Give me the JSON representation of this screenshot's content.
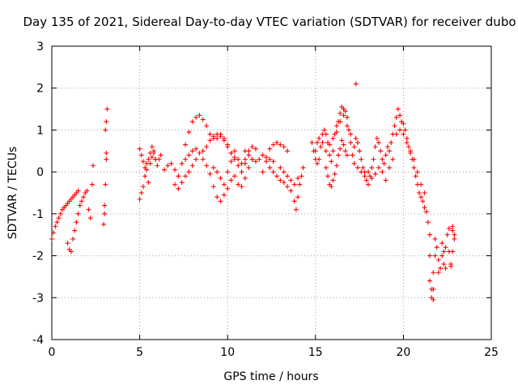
{
  "chart_data": {
    "type": "scatter",
    "title": "Day 135 of 2021, Sidereal Day-to-day VTEC variation (SDTVAR) for receiver dubo",
    "xlabel": "GPS time / hours",
    "ylabel": "SDTVAR / TECUs",
    "xlim": [
      0,
      25
    ],
    "ylim": [
      -4,
      3
    ],
    "xticks": [
      0,
      5,
      10,
      15,
      20,
      25
    ],
    "yticks": [
      -4,
      -3,
      -2,
      -1,
      0,
      1,
      2,
      3
    ],
    "xtick_labels": [
      "0",
      "5",
      "10",
      "15",
      "20",
      "25"
    ],
    "ytick_labels": [
      "-4",
      "-3",
      "-2",
      "-1",
      "0",
      "1",
      "2",
      "3"
    ],
    "grid": true,
    "marker": "+",
    "marker_color": "#ff0000",
    "series": [
      {
        "name": "SDTVAR",
        "points": [
          [
            0.0,
            -1.6
          ],
          [
            0.1,
            -1.45
          ],
          [
            0.2,
            -1.3
          ],
          [
            0.3,
            -1.2
          ],
          [
            0.4,
            -1.1
          ],
          [
            0.5,
            -1.0
          ],
          [
            0.6,
            -0.9
          ],
          [
            0.7,
            -0.85
          ],
          [
            0.8,
            -0.8
          ],
          [
            0.9,
            -0.75
          ],
          [
            1.0,
            -0.7
          ],
          [
            1.1,
            -0.65
          ],
          [
            1.2,
            -0.6
          ],
          [
            1.3,
            -0.55
          ],
          [
            1.4,
            -0.5
          ],
          [
            1.5,
            -0.45
          ],
          [
            0.9,
            -1.7
          ],
          [
            1.0,
            -1.85
          ],
          [
            1.1,
            -1.9
          ],
          [
            1.2,
            -1.6
          ],
          [
            1.3,
            -1.4
          ],
          [
            1.4,
            -1.2
          ],
          [
            1.5,
            -1.0
          ],
          [
            1.6,
            -0.8
          ],
          [
            1.7,
            -0.7
          ],
          [
            1.8,
            -0.6
          ],
          [
            1.9,
            -0.5
          ],
          [
            2.0,
            -0.45
          ],
          [
            2.1,
            -0.9
          ],
          [
            2.2,
            -1.1
          ],
          [
            2.3,
            -0.3
          ],
          [
            2.35,
            0.15
          ],
          [
            2.95,
            -1.25
          ],
          [
            3.0,
            -1.0
          ],
          [
            3.0,
            -0.8
          ],
          [
            3.05,
            -0.3
          ],
          [
            3.1,
            0.3
          ],
          [
            3.1,
            0.45
          ],
          [
            3.05,
            1.0
          ],
          [
            3.1,
            1.2
          ],
          [
            3.15,
            1.5
          ],
          [
            5.0,
            -0.65
          ],
          [
            5.1,
            -0.5
          ],
          [
            5.2,
            -0.35
          ],
          [
            5.3,
            -0.1
          ],
          [
            5.4,
            0.05
          ],
          [
            5.5,
            -0.25
          ],
          [
            5.6,
            0.2
          ],
          [
            5.7,
            0.35
          ],
          [
            5.8,
            0.45
          ],
          [
            5.9,
            0.3
          ],
          [
            5.0,
            0.55
          ],
          [
            5.1,
            0.4
          ],
          [
            5.2,
            0.25
          ],
          [
            5.3,
            0.1
          ],
          [
            5.4,
            0.2
          ],
          [
            5.5,
            0.3
          ],
          [
            5.6,
            0.45
          ],
          [
            5.7,
            0.6
          ],
          [
            5.8,
            0.5
          ],
          [
            5.9,
            0.3
          ],
          [
            6.0,
            0.15
          ],
          [
            6.1,
            0.3
          ],
          [
            6.2,
            0.4
          ],
          [
            6.4,
            0.05
          ],
          [
            6.6,
            0.15
          ],
          [
            6.8,
            0.2
          ],
          [
            7.0,
            0.05
          ],
          [
            7.2,
            -0.1
          ],
          [
            7.4,
            0.2
          ],
          [
            7.6,
            0.3
          ],
          [
            7.8,
            0.4
          ],
          [
            8.0,
            0.5
          ],
          [
            8.2,
            0.55
          ],
          [
            7.0,
            -0.3
          ],
          [
            7.2,
            -0.4
          ],
          [
            7.4,
            -0.25
          ],
          [
            7.6,
            -0.1
          ],
          [
            7.8,
            0.0
          ],
          [
            8.0,
            0.15
          ],
          [
            8.2,
            0.3
          ],
          [
            8.4,
            0.45
          ],
          [
            7.6,
            0.65
          ],
          [
            7.8,
            0.95
          ],
          [
            8.0,
            1.2
          ],
          [
            8.2,
            1.3
          ],
          [
            8.4,
            1.35
          ],
          [
            8.6,
            1.25
          ],
          [
            8.8,
            1.1
          ],
          [
            9.0,
            0.9
          ],
          [
            9.2,
            0.8
          ],
          [
            9.4,
            0.8
          ],
          [
            9.6,
            0.85
          ],
          [
            9.8,
            0.75
          ],
          [
            10.0,
            0.6
          ],
          [
            10.2,
            0.45
          ],
          [
            10.4,
            0.5
          ],
          [
            8.6,
            0.5
          ],
          [
            8.8,
            0.6
          ],
          [
            9.0,
            0.75
          ],
          [
            9.2,
            0.85
          ],
          [
            9.4,
            0.9
          ],
          [
            9.6,
            0.9
          ],
          [
            9.8,
            0.8
          ],
          [
            10.0,
            0.65
          ],
          [
            10.2,
            0.45
          ],
          [
            10.4,
            0.3
          ],
          [
            10.6,
            0.15
          ],
          [
            10.8,
            0.0
          ],
          [
            11.0,
            0.2
          ],
          [
            11.2,
            0.5
          ],
          [
            11.4,
            0.6
          ],
          [
            11.6,
            0.55
          ],
          [
            8.6,
            0.3
          ],
          [
            8.8,
            0.15
          ],
          [
            9.0,
            -0.05
          ],
          [
            9.2,
            -0.35
          ],
          [
            9.4,
            -0.6
          ],
          [
            9.6,
            -0.7
          ],
          [
            9.8,
            -0.55
          ],
          [
            10.0,
            -0.4
          ],
          [
            10.2,
            -0.2
          ],
          [
            10.4,
            -0.1
          ],
          [
            10.6,
            -0.3
          ],
          [
            10.8,
            -0.35
          ],
          [
            11.0,
            -0.15
          ],
          [
            11.2,
            0.1
          ],
          [
            11.4,
            0.3
          ],
          [
            9.2,
            0.1
          ],
          [
            9.4,
            0.0
          ],
          [
            9.6,
            -0.15
          ],
          [
            9.8,
            -0.3
          ],
          [
            10.0,
            0.0
          ],
          [
            10.2,
            0.25
          ],
          [
            10.4,
            0.35
          ],
          [
            10.6,
            0.3
          ],
          [
            10.8,
            0.2
          ],
          [
            11.0,
            0.3
          ],
          [
            11.0,
            0.5
          ],
          [
            11.2,
            0.4
          ],
          [
            11.4,
            0.3
          ],
          [
            11.6,
            0.25
          ],
          [
            11.8,
            0.3
          ],
          [
            12.0,
            0.4
          ],
          [
            12.2,
            0.35
          ],
          [
            12.4,
            0.3
          ],
          [
            12.6,
            0.25
          ],
          [
            12.0,
            0.0
          ],
          [
            12.2,
            0.25
          ],
          [
            12.4,
            0.55
          ],
          [
            12.6,
            0.65
          ],
          [
            12.8,
            0.7
          ],
          [
            13.0,
            0.65
          ],
          [
            13.2,
            0.6
          ],
          [
            13.4,
            0.5
          ],
          [
            12.4,
            0.1
          ],
          [
            12.6,
            0.0
          ],
          [
            12.8,
            -0.1
          ],
          [
            13.0,
            -0.2
          ],
          [
            13.2,
            -0.25
          ],
          [
            13.4,
            -0.35
          ],
          [
            13.6,
            -0.45
          ],
          [
            13.8,
            -0.7
          ],
          [
            13.9,
            -0.9
          ],
          [
            14.0,
            -0.6
          ],
          [
            14.1,
            -0.3
          ],
          [
            14.2,
            -0.1
          ],
          [
            14.3,
            0.1
          ],
          [
            13.0,
            0.1
          ],
          [
            13.2,
            0.0
          ],
          [
            13.4,
            -0.1
          ],
          [
            13.6,
            -0.2
          ],
          [
            13.8,
            -0.3
          ],
          [
            14.0,
            -0.15
          ],
          [
            14.8,
            0.7
          ],
          [
            14.9,
            0.5
          ],
          [
            15.0,
            0.3
          ],
          [
            15.1,
            0.2
          ],
          [
            15.2,
            0.3
          ],
          [
            15.3,
            0.6
          ],
          [
            15.4,
            0.9
          ],
          [
            15.5,
            1.0
          ],
          [
            15.6,
            0.9
          ],
          [
            15.7,
            0.7
          ],
          [
            15.8,
            0.4
          ],
          [
            15.9,
            0.25
          ],
          [
            16.0,
            0.5
          ],
          [
            16.1,
            0.9
          ],
          [
            16.2,
            1.1
          ],
          [
            16.3,
            1.2
          ],
          [
            16.4,
            1.4
          ],
          [
            16.5,
            1.55
          ],
          [
            16.6,
            1.5
          ],
          [
            16.7,
            1.45
          ],
          [
            16.8,
            1.3
          ],
          [
            16.9,
            1.0
          ],
          [
            17.0,
            0.7
          ],
          [
            15.0,
            0.5
          ],
          [
            15.1,
            0.7
          ],
          [
            15.2,
            0.8
          ],
          [
            15.4,
            0.7
          ],
          [
            15.6,
            0.5
          ],
          [
            15.8,
            0.65
          ],
          [
            16.0,
            0.8
          ],
          [
            16.2,
            0.95
          ],
          [
            16.4,
            1.2
          ],
          [
            16.6,
            1.35
          ],
          [
            16.8,
            1.1
          ],
          [
            17.0,
            0.9
          ],
          [
            15.6,
            0.1
          ],
          [
            15.7,
            -0.1
          ],
          [
            15.8,
            -0.3
          ],
          [
            15.9,
            -0.35
          ],
          [
            16.0,
            -0.2
          ],
          [
            16.1,
            -0.05
          ],
          [
            16.2,
            0.15
          ],
          [
            16.3,
            0.4
          ],
          [
            16.4,
            0.55
          ],
          [
            16.5,
            0.75
          ],
          [
            16.6,
            0.65
          ],
          [
            16.7,
            0.5
          ],
          [
            16.8,
            0.4
          ],
          [
            17.3,
            2.1
          ],
          [
            17.1,
            0.4
          ],
          [
            17.2,
            0.6
          ],
          [
            17.3,
            0.8
          ],
          [
            17.4,
            0.7
          ],
          [
            17.5,
            0.5
          ],
          [
            17.6,
            0.3
          ],
          [
            17.7,
            0.1
          ],
          [
            17.8,
            0.0
          ],
          [
            17.9,
            -0.2
          ],
          [
            18.0,
            -0.3
          ],
          [
            18.1,
            -0.1
          ],
          [
            18.2,
            0.1
          ],
          [
            18.3,
            0.3
          ],
          [
            18.4,
            0.6
          ],
          [
            18.5,
            0.8
          ],
          [
            18.6,
            0.7
          ],
          [
            18.7,
            0.5
          ],
          [
            18.8,
            0.3
          ],
          [
            17.2,
            0.2
          ],
          [
            17.4,
            0.1
          ],
          [
            17.6,
            0.0
          ],
          [
            17.8,
            -0.1
          ],
          [
            18.0,
            0.0
          ],
          [
            18.2,
            -0.15
          ],
          [
            18.4,
            -0.05
          ],
          [
            18.6,
            0.1
          ],
          [
            18.8,
            0.0
          ],
          [
            19.0,
            -0.2
          ],
          [
            19.2,
            0.1
          ],
          [
            19.4,
            0.3
          ],
          [
            18.9,
            0.2
          ],
          [
            19.0,
            0.4
          ],
          [
            19.1,
            0.6
          ],
          [
            19.2,
            0.5
          ],
          [
            19.3,
            0.7
          ],
          [
            19.4,
            0.9
          ],
          [
            19.5,
            1.1
          ],
          [
            19.6,
            1.3
          ],
          [
            19.7,
            1.5
          ],
          [
            19.8,
            1.35
          ],
          [
            19.9,
            1.2
          ],
          [
            20.0,
            1.15
          ],
          [
            20.1,
            1.0
          ],
          [
            20.2,
            0.8
          ],
          [
            20.3,
            0.6
          ],
          [
            20.4,
            0.45
          ],
          [
            20.5,
            0.3
          ],
          [
            20.6,
            0.1
          ],
          [
            20.7,
            -0.1
          ],
          [
            20.8,
            -0.3
          ],
          [
            20.9,
            -0.5
          ],
          [
            21.0,
            -0.6
          ],
          [
            21.1,
            -0.7
          ],
          [
            21.2,
            -0.85
          ],
          [
            21.3,
            -0.95
          ],
          [
            19.6,
            0.9
          ],
          [
            19.8,
            1.0
          ],
          [
            20.0,
            0.9
          ],
          [
            20.2,
            0.7
          ],
          [
            20.4,
            0.5
          ],
          [
            20.6,
            0.3
          ],
          [
            20.8,
            0.0
          ],
          [
            21.0,
            -0.3
          ],
          [
            21.2,
            -0.5
          ],
          [
            21.4,
            -1.2
          ],
          [
            21.5,
            -1.5
          ],
          [
            21.5,
            -2.0
          ],
          [
            21.5,
            -2.6
          ],
          [
            21.6,
            -2.8
          ],
          [
            21.6,
            -3.0
          ],
          [
            21.7,
            -3.05
          ],
          [
            21.7,
            -2.8
          ],
          [
            21.7,
            -2.4
          ],
          [
            21.8,
            -2.0
          ],
          [
            21.8,
            -1.6
          ],
          [
            21.9,
            -1.8
          ],
          [
            22.0,
            -2.1
          ],
          [
            22.0,
            -2.4
          ],
          [
            22.1,
            -2.3
          ],
          [
            22.2,
            -2.0
          ],
          [
            22.2,
            -1.7
          ],
          [
            22.3,
            -1.9
          ],
          [
            22.3,
            -2.2
          ],
          [
            22.4,
            -2.3
          ],
          [
            22.4,
            -1.8
          ],
          [
            22.5,
            -1.5
          ],
          [
            22.6,
            -1.35
          ],
          [
            22.6,
            -1.9
          ],
          [
            22.7,
            -2.2
          ],
          [
            22.7,
            -2.25
          ],
          [
            22.8,
            -1.9
          ],
          [
            22.8,
            -1.4
          ],
          [
            22.8,
            -1.3
          ],
          [
            22.9,
            -1.5
          ],
          [
            22.9,
            -1.6
          ]
        ]
      }
    ]
  }
}
